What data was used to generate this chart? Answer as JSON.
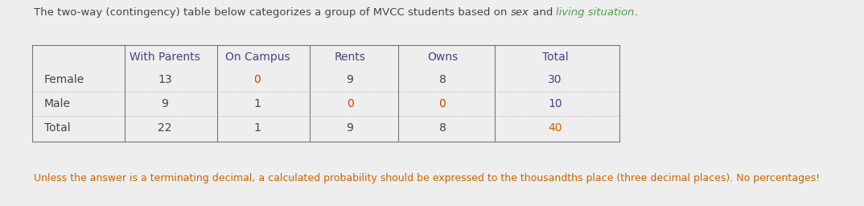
{
  "title_parts": [
    {
      "text": "The two-way (contingency) table below categorizes a group of MVCC students based on ",
      "color": "#444444",
      "style": "normal"
    },
    {
      "text": "sex",
      "color": "#444444",
      "style": "italic"
    },
    {
      "text": " and ",
      "color": "#444444",
      "style": "normal"
    },
    {
      "text": "living situation",
      "color": "#4a9f4a",
      "style": "italic"
    },
    {
      "text": ".",
      "color": "#444444",
      "style": "normal"
    }
  ],
  "col_headers": [
    "With Parents",
    "On Campus",
    "Rents",
    "Owns",
    "Total"
  ],
  "row_headers": [
    "Female",
    "Male",
    "Total"
  ],
  "data": [
    [
      13,
      0,
      9,
      8,
      30
    ],
    [
      9,
      1,
      0,
      0,
      10
    ],
    [
      22,
      1,
      9,
      8,
      40
    ]
  ],
  "footer": "Unless the answer is a terminating decimal, a calculated probability should be expressed to the thousandths place (three decimal places). No percentages!",
  "bg_color": "#eeeeee",
  "col_header_color": "#444488",
  "normal_color": "#444444",
  "zero_color": "#cc4400",
  "total_col_color": "#444488",
  "total_row_last_color": "#cc6600",
  "footer_color": "#cc6600",
  "figsize": [
    10.74,
    2.56
  ],
  "dpi": 100,
  "title_fontsize": 9.5,
  "table_fontsize": 10,
  "footer_fontsize": 9
}
